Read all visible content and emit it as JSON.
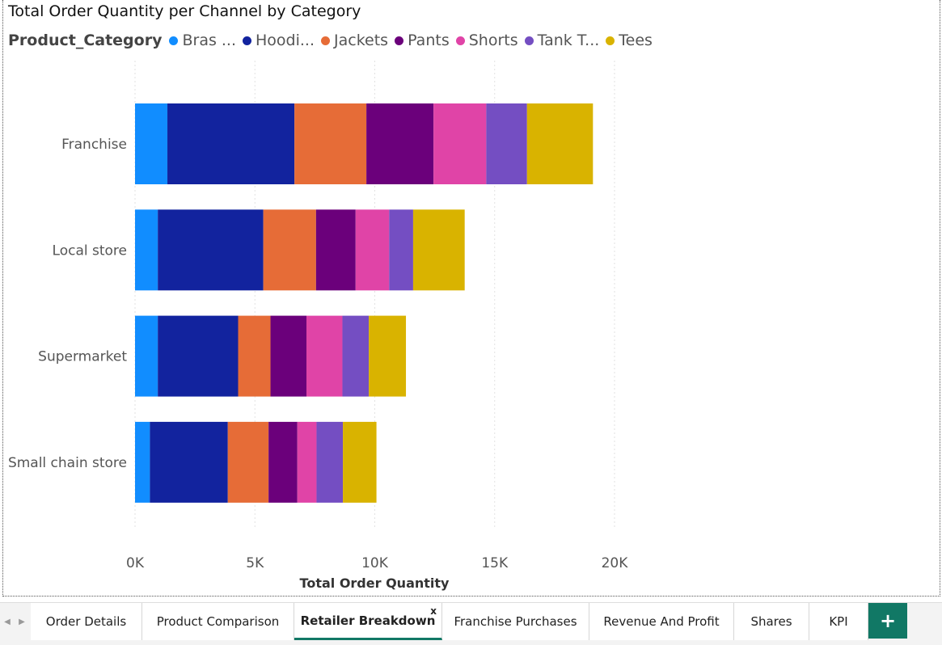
{
  "chart_data": {
    "type": "bar",
    "orientation": "horizontal",
    "stacked": true,
    "title": "Total Order Quantity per Channel by Category",
    "legend_title": "Product_Category",
    "legend_position": "top-left",
    "xlabel": "Total Order Quantity",
    "ylabel": "",
    "xlim": [
      0,
      20000
    ],
    "x_ticks": [
      0,
      5000,
      10000,
      15000,
      20000
    ],
    "x_tick_labels": [
      "0K",
      "5K",
      "10K",
      "15K",
      "20K"
    ],
    "grid": "vertical dotted",
    "categories": [
      "Franchise",
      "Local store",
      "Supermarket",
      "Small chain store"
    ],
    "series": [
      {
        "name": "Bras ...",
        "color": "#118DFF",
        "values": [
          1350,
          950,
          950,
          620
        ]
      },
      {
        "name": "Hoodi...",
        "color": "#12239E",
        "values": [
          5300,
          4400,
          3350,
          3250
        ]
      },
      {
        "name": "Jackets",
        "color": "#E66C37",
        "values": [
          3000,
          2200,
          1350,
          1700
        ]
      },
      {
        "name": "Pants",
        "color": "#6B007B",
        "values": [
          2800,
          1650,
          1500,
          1200
        ]
      },
      {
        "name": "Shorts",
        "color": "#E044A7",
        "values": [
          2200,
          1400,
          1500,
          800
        ]
      },
      {
        "name": "Tank T...",
        "color": "#744EC2",
        "values": [
          1700,
          1000,
          1100,
          1100
        ]
      },
      {
        "name": "Tees",
        "color": "#D9B300",
        "values": [
          2750,
          2150,
          1550,
          1400
        ]
      }
    ]
  },
  "tabs": {
    "items": [
      "Order Details",
      "Product Comparison",
      "Retailer Breakdown",
      "Franchise Purchases",
      "Revenue And Profit",
      "Shares",
      "KPI"
    ],
    "active": "Retailer Breakdown",
    "close_label": "x",
    "add_label": "+"
  }
}
